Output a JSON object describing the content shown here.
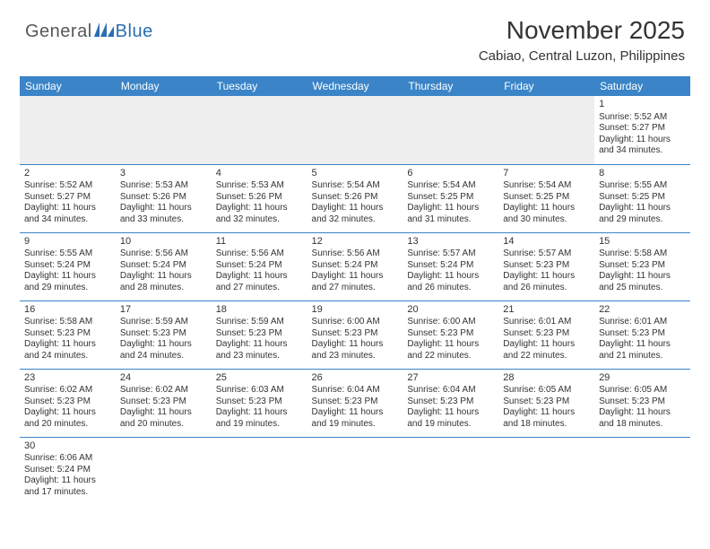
{
  "logo": {
    "general": "General",
    "blue": "Blue"
  },
  "title": "November 2025",
  "location": "Cabiao, Central Luzon, Philippines",
  "colors": {
    "header_bg": "#3a84c7",
    "header_fg": "#ffffff",
    "border": "#3a84c7",
    "text": "#333333",
    "empty_bg": "#eeeeee",
    "logo_gray": "#55585a",
    "logo_blue": "#2a6db3"
  },
  "day_names": [
    "Sunday",
    "Monday",
    "Tuesday",
    "Wednesday",
    "Thursday",
    "Friday",
    "Saturday"
  ],
  "weeks": [
    [
      null,
      null,
      null,
      null,
      null,
      null,
      {
        "n": "1",
        "sr": "5:52 AM",
        "ss": "5:27 PM",
        "dl": "11 hours and 34 minutes."
      }
    ],
    [
      {
        "n": "2",
        "sr": "5:52 AM",
        "ss": "5:27 PM",
        "dl": "11 hours and 34 minutes."
      },
      {
        "n": "3",
        "sr": "5:53 AM",
        "ss": "5:26 PM",
        "dl": "11 hours and 33 minutes."
      },
      {
        "n": "4",
        "sr": "5:53 AM",
        "ss": "5:26 PM",
        "dl": "11 hours and 32 minutes."
      },
      {
        "n": "5",
        "sr": "5:54 AM",
        "ss": "5:26 PM",
        "dl": "11 hours and 32 minutes."
      },
      {
        "n": "6",
        "sr": "5:54 AM",
        "ss": "5:25 PM",
        "dl": "11 hours and 31 minutes."
      },
      {
        "n": "7",
        "sr": "5:54 AM",
        "ss": "5:25 PM",
        "dl": "11 hours and 30 minutes."
      },
      {
        "n": "8",
        "sr": "5:55 AM",
        "ss": "5:25 PM",
        "dl": "11 hours and 29 minutes."
      }
    ],
    [
      {
        "n": "9",
        "sr": "5:55 AM",
        "ss": "5:24 PM",
        "dl": "11 hours and 29 minutes."
      },
      {
        "n": "10",
        "sr": "5:56 AM",
        "ss": "5:24 PM",
        "dl": "11 hours and 28 minutes."
      },
      {
        "n": "11",
        "sr": "5:56 AM",
        "ss": "5:24 PM",
        "dl": "11 hours and 27 minutes."
      },
      {
        "n": "12",
        "sr": "5:56 AM",
        "ss": "5:24 PM",
        "dl": "11 hours and 27 minutes."
      },
      {
        "n": "13",
        "sr": "5:57 AM",
        "ss": "5:24 PM",
        "dl": "11 hours and 26 minutes."
      },
      {
        "n": "14",
        "sr": "5:57 AM",
        "ss": "5:23 PM",
        "dl": "11 hours and 26 minutes."
      },
      {
        "n": "15",
        "sr": "5:58 AM",
        "ss": "5:23 PM",
        "dl": "11 hours and 25 minutes."
      }
    ],
    [
      {
        "n": "16",
        "sr": "5:58 AM",
        "ss": "5:23 PM",
        "dl": "11 hours and 24 minutes."
      },
      {
        "n": "17",
        "sr": "5:59 AM",
        "ss": "5:23 PM",
        "dl": "11 hours and 24 minutes."
      },
      {
        "n": "18",
        "sr": "5:59 AM",
        "ss": "5:23 PM",
        "dl": "11 hours and 23 minutes."
      },
      {
        "n": "19",
        "sr": "6:00 AM",
        "ss": "5:23 PM",
        "dl": "11 hours and 23 minutes."
      },
      {
        "n": "20",
        "sr": "6:00 AM",
        "ss": "5:23 PM",
        "dl": "11 hours and 22 minutes."
      },
      {
        "n": "21",
        "sr": "6:01 AM",
        "ss": "5:23 PM",
        "dl": "11 hours and 22 minutes."
      },
      {
        "n": "22",
        "sr": "6:01 AM",
        "ss": "5:23 PM",
        "dl": "11 hours and 21 minutes."
      }
    ],
    [
      {
        "n": "23",
        "sr": "6:02 AM",
        "ss": "5:23 PM",
        "dl": "11 hours and 20 minutes."
      },
      {
        "n": "24",
        "sr": "6:02 AM",
        "ss": "5:23 PM",
        "dl": "11 hours and 20 minutes."
      },
      {
        "n": "25",
        "sr": "6:03 AM",
        "ss": "5:23 PM",
        "dl": "11 hours and 19 minutes."
      },
      {
        "n": "26",
        "sr": "6:04 AM",
        "ss": "5:23 PM",
        "dl": "11 hours and 19 minutes."
      },
      {
        "n": "27",
        "sr": "6:04 AM",
        "ss": "5:23 PM",
        "dl": "11 hours and 19 minutes."
      },
      {
        "n": "28",
        "sr": "6:05 AM",
        "ss": "5:23 PM",
        "dl": "11 hours and 18 minutes."
      },
      {
        "n": "29",
        "sr": "6:05 AM",
        "ss": "5:23 PM",
        "dl": "11 hours and 18 minutes."
      }
    ],
    [
      {
        "n": "30",
        "sr": "6:06 AM",
        "ss": "5:24 PM",
        "dl": "11 hours and 17 minutes."
      },
      null,
      null,
      null,
      null,
      null,
      null
    ]
  ],
  "labels": {
    "sunrise": "Sunrise:",
    "sunset": "Sunset:",
    "daylight": "Daylight:"
  }
}
